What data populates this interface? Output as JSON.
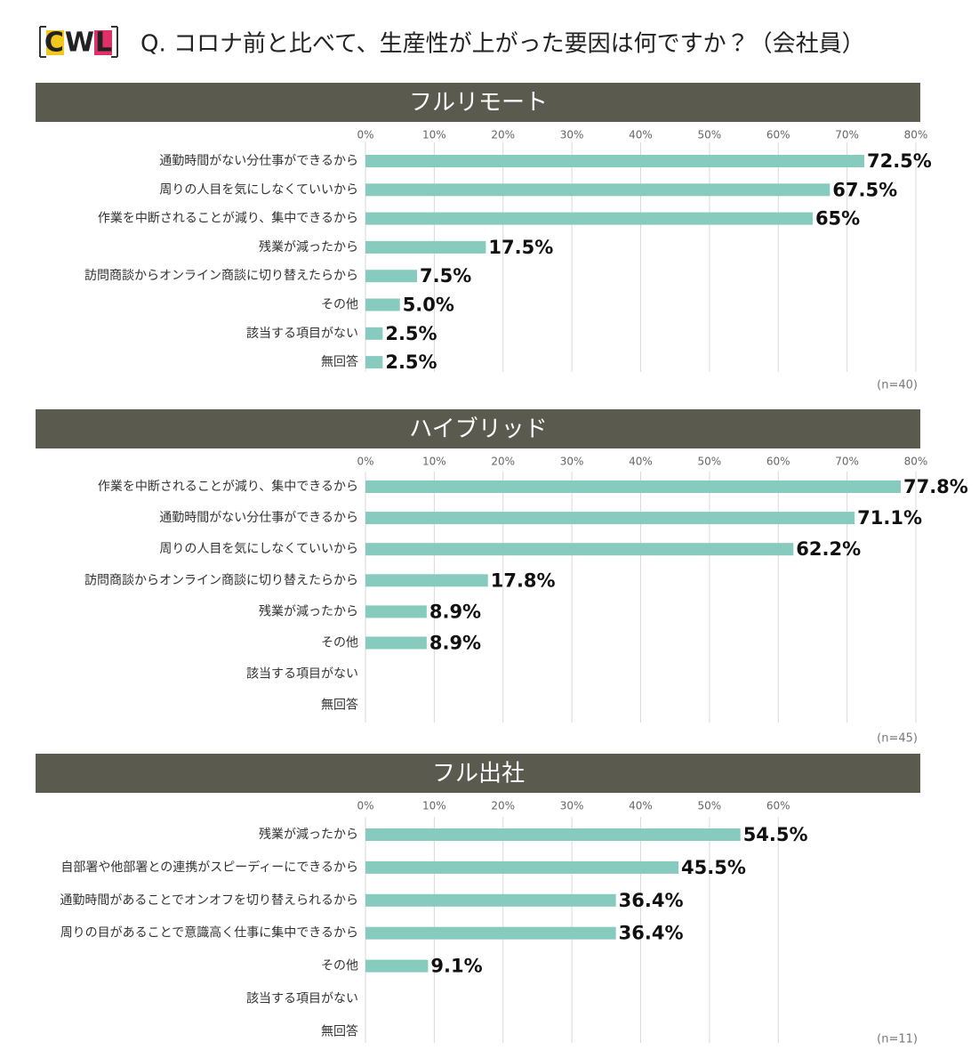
{
  "header": {
    "logo": "CWL",
    "title": "Q. コロナ前と比べて、生産性が上がった要因は何ですか？（会社員）"
  },
  "chart_data": [
    {
      "type": "bar",
      "orientation": "horizontal",
      "title": "フルリモート",
      "categories": [
        "通勤時間がない分仕事ができるから",
        "周りの人目を気にしなくていいから",
        "作業を中断されることが減り、集中できるから",
        "残業が減ったから",
        "訪問商談からオンライン商談に切り替えたらから",
        "その他",
        "該当する項目がない",
        "無回答"
      ],
      "values": [
        72.5,
        67.5,
        65,
        17.5,
        7.5,
        5.0,
        2.5,
        2.5
      ],
      "value_labels": [
        "72.5%",
        "67.5%",
        "65%",
        "17.5%",
        "7.5%",
        "5.0%",
        "2.5%",
        "2.5%"
      ],
      "color": "#86cbbd",
      "xlim": [
        0,
        80
      ],
      "xticks": [
        {
          "value": 0,
          "label": "0%"
        },
        {
          "value": 10,
          "label": "10%"
        },
        {
          "value": 20,
          "label": "20%"
        },
        {
          "value": 30,
          "label": "30%"
        },
        {
          "value": 40,
          "label": "40%"
        },
        {
          "value": 50,
          "label": "50%"
        },
        {
          "value": 60,
          "label": "60%"
        },
        {
          "value": 70,
          "label": "70%"
        },
        {
          "value": 80,
          "label": "80%"
        }
      ],
      "grid": true,
      "note": "(n=40)"
    },
    {
      "type": "bar",
      "orientation": "horizontal",
      "title": "ハイブリッド",
      "categories": [
        "作業を中断されることが減り、集中できるから",
        "通勤時間がない分仕事ができるから",
        "周りの人目を気にしなくていいから",
        "訪問商談からオンライン商談に切り替えたらから",
        "残業が減ったから",
        "その他",
        "該当する項目がない",
        "無回答"
      ],
      "values": [
        77.8,
        71.1,
        62.2,
        17.8,
        8.9,
        8.9,
        0,
        0
      ],
      "value_labels": [
        "77.8%",
        "71.1%",
        "62.2%",
        "17.8%",
        "8.9%",
        "8.9%",
        null,
        null
      ],
      "color": "#86cbbd",
      "xlim": [
        0,
        80
      ],
      "xticks": [
        {
          "value": 0,
          "label": "0%"
        },
        {
          "value": 10,
          "label": "10%"
        },
        {
          "value": 20,
          "label": "20%"
        },
        {
          "value": 30,
          "label": "30%"
        },
        {
          "value": 40,
          "label": "40%"
        },
        {
          "value": 50,
          "label": "50%"
        },
        {
          "value": 60,
          "label": "60%"
        },
        {
          "value": 70,
          "label": "70%"
        },
        {
          "value": 80,
          "label": "80%"
        }
      ],
      "grid": true,
      "note": "(n=45)"
    },
    {
      "type": "bar",
      "orientation": "horizontal",
      "title": "フル出社",
      "categories": [
        "残業が減ったから",
        "自部署や他部署との連携がスピーディーにできるから",
        "通勤時間があることでオンオフを切り替えられるから",
        "周りの目があることで意識高く仕事に集中できるから",
        "その他",
        "該当する項目がない",
        "無回答"
      ],
      "values": [
        54.5,
        45.5,
        36.4,
        36.4,
        9.1,
        0,
        0
      ],
      "value_labels": [
        "54.5%",
        "45.5%",
        "36.4%",
        "36.4%",
        "9.1%",
        null,
        null
      ],
      "color": "#86cbbd",
      "xlim": [
        0,
        80
      ],
      "xticks": [
        {
          "value": 0,
          "label": "0%"
        },
        {
          "value": 10,
          "label": "10%"
        },
        {
          "value": 20,
          "label": "20%"
        },
        {
          "value": 30,
          "label": "30%"
        },
        {
          "value": 40,
          "label": "40%"
        },
        {
          "value": 50,
          "label": "50%"
        },
        {
          "value": 60,
          "label": "60%"
        }
      ],
      "grid": true,
      "note": "(n=11)"
    }
  ]
}
